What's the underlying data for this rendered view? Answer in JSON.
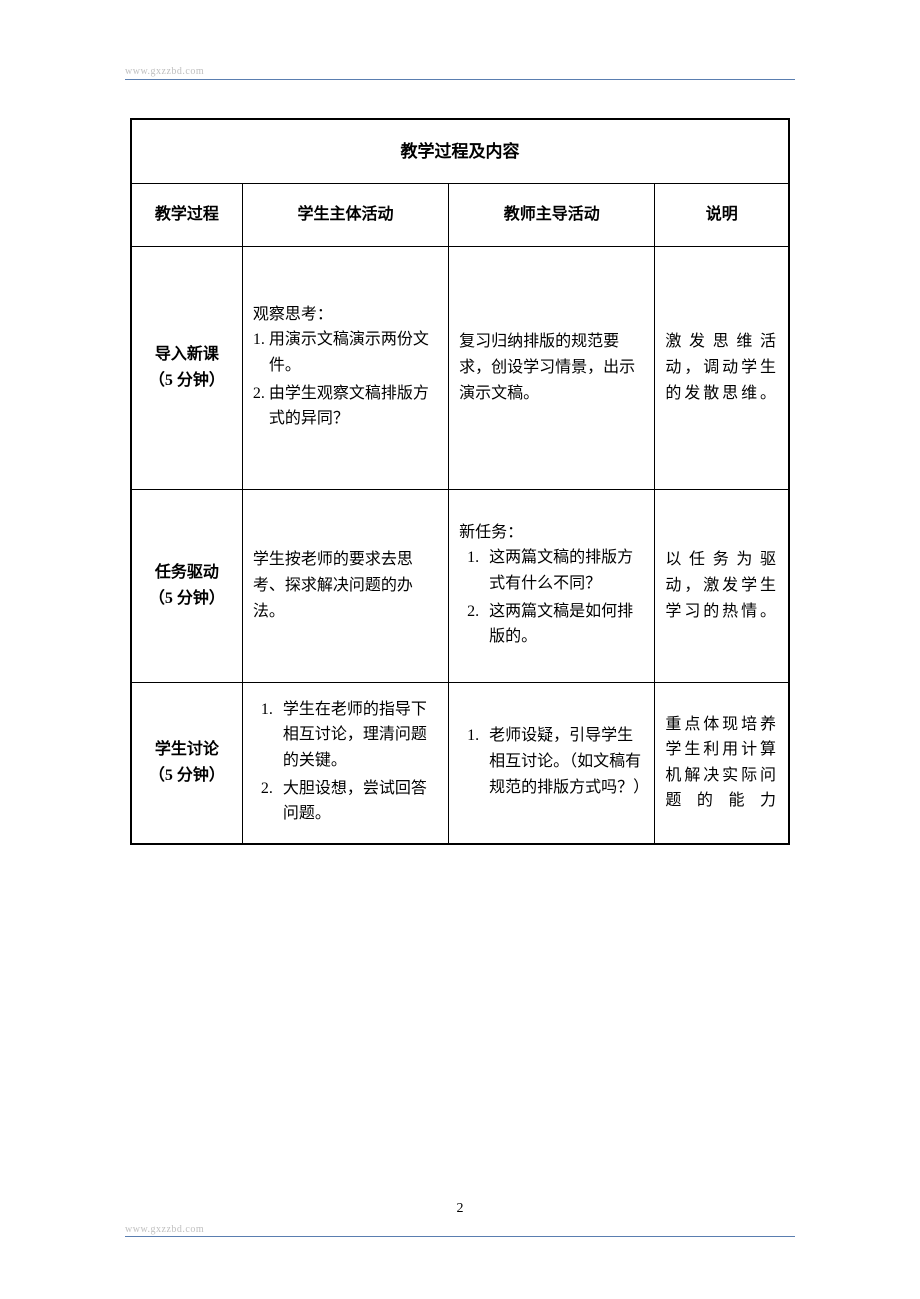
{
  "header": {
    "url": "www.gxzzbd.com"
  },
  "footer": {
    "url": "www.gxzzbd.com",
    "page_number": "2"
  },
  "table": {
    "title": "教学过程及内容",
    "columns": {
      "process": "教学过程",
      "student": "学生主体活动",
      "teacher": "教师主导活动",
      "note": "说明"
    },
    "rows": [
      {
        "process_title": "导入新课",
        "process_time": "（5 分钟）",
        "student_intro": "观察思考：",
        "student_items": [
          {
            "num": "1.",
            "text": "用演示文稿演示两份文件。"
          },
          {
            "num": "2.",
            "text": "由学生观察文稿排版方式的异同？"
          }
        ],
        "teacher_text": "复习归纳排版的规范要求，创设学习情景，出示演示文稿。",
        "note_text": "激发思维活动，调动学生的发散思维。"
      },
      {
        "process_title": "任务驱动",
        "process_time": "（5 分钟）",
        "student_text": "学生按老师的要求去思考、探求解决问题的办法。",
        "teacher_intro": "新任务：",
        "teacher_items": [
          {
            "num": "1.",
            "text": "这两篇文稿的排版方式有什么不同？"
          },
          {
            "num": "2.",
            "text": "这两篇文稿是如何排版的。"
          }
        ],
        "note_text": "以任务为驱动，激发学生学习的热情。"
      },
      {
        "process_title": "学生讨论",
        "process_time": "（5 分钟）",
        "student_items": [
          {
            "num": "1.",
            "text": "学生在老师的指导下相互讨论，理清问题的关键。"
          },
          {
            "num": "2.",
            "text": "大胆设想，尝试回答问题。"
          }
        ],
        "teacher_items": [
          {
            "num": "1.",
            "text": "老师设疑，引导学生相互讨论。（如文稿有规范的排版方式吗？）"
          }
        ],
        "note_text": "重点体现培养学生利用计算机解决实际问题的能力"
      }
    ]
  }
}
